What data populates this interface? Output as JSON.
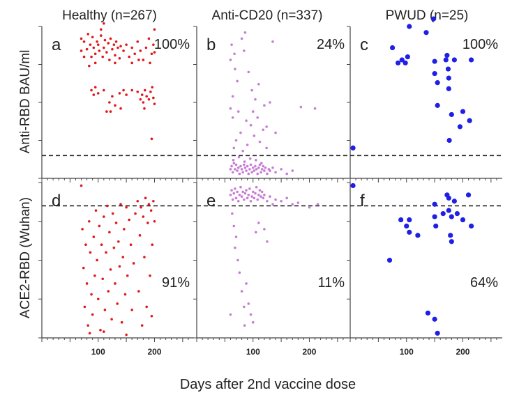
{
  "figure": {
    "xlabel": "Days after 2nd vaccine dose",
    "row_labels": [
      "Anti-RBD BAU/ml",
      "ACE2-RBD (Wuhan)"
    ],
    "columns": [
      "Healthy (n=267)",
      "Anti-CD20 (n=337)",
      "PWUD (n=25)"
    ],
    "tick_labels": [
      "100",
      "200"
    ]
  },
  "colors": {
    "healthy": "#e0191c",
    "anti_cd20": "#c77dd6",
    "pwud": "#1f1fe6",
    "axis": "#444444",
    "threshold": "#222222"
  },
  "chart_data": [
    {
      "type": "scatter",
      "panel": "a",
      "group": "Healthy (n=267)",
      "measure": "Anti-RBD BAU/ml",
      "percent_label": "100%",
      "xlim": [
        0,
        270
      ],
      "ylim": [
        0,
        100
      ],
      "threshold": 15,
      "points": [
        [
          70,
          92
        ],
        [
          75,
          90
        ],
        [
          80,
          85
        ],
        [
          82,
          95
        ],
        [
          86,
          88
        ],
        [
          88,
          80
        ],
        [
          90,
          93
        ],
        [
          92,
          86
        ],
        [
          95,
          82
        ],
        [
          98,
          90
        ],
        [
          100,
          88
        ],
        [
          102,
          84
        ],
        [
          105,
          94
        ],
        [
          108,
          80
        ],
        [
          110,
          86
        ],
        [
          112,
          91
        ],
        [
          115,
          83
        ],
        [
          118,
          89
        ],
        [
          120,
          78
        ],
        [
          122,
          92
        ],
        [
          125,
          85
        ],
        [
          128,
          88
        ],
        [
          130,
          81
        ],
        [
          132,
          90
        ],
        [
          135,
          86
        ],
        [
          138,
          79
        ],
        [
          140,
          87
        ],
        [
          145,
          84
        ],
        [
          150,
          88
        ],
        [
          155,
          80
        ],
        [
          160,
          86
        ],
        [
          165,
          82
        ],
        [
          170,
          90
        ],
        [
          175,
          84
        ],
        [
          180,
          78
        ],
        [
          185,
          86
        ],
        [
          190,
          92
        ],
        [
          195,
          82
        ],
        [
          198,
          88
        ],
        [
          110,
          102
        ],
        [
          75,
          80
        ],
        [
          95,
          76
        ],
        [
          130,
          76
        ],
        [
          172,
          78
        ],
        [
          192,
          76
        ],
        [
          88,
          58
        ],
        [
          92,
          55
        ],
        [
          95,
          60
        ],
        [
          100,
          56
        ],
        [
          110,
          58
        ],
        [
          120,
          50
        ],
        [
          125,
          54
        ],
        [
          130,
          48
        ],
        [
          138,
          56
        ],
        [
          145,
          58
        ],
        [
          150,
          55
        ],
        [
          160,
          58
        ],
        [
          170,
          57
        ],
        [
          175,
          52
        ],
        [
          178,
          55
        ],
        [
          180,
          50
        ],
        [
          183,
          58
        ],
        [
          186,
          54
        ],
        [
          190,
          52
        ],
        [
          193,
          57
        ],
        [
          196,
          60
        ],
        [
          198,
          53
        ],
        [
          200,
          49
        ],
        [
          115,
          44
        ],
        [
          140,
          46
        ],
        [
          182,
          46
        ],
        [
          122,
          44
        ],
        [
          195,
          26
        ],
        [
          200,
          98
        ],
        [
          70,
          84
        ],
        [
          84,
          74
        ],
        [
          105,
          98
        ],
        [
          160,
          76
        ],
        [
          200,
          83
        ]
      ]
    },
    {
      "type": "scatter",
      "panel": "b",
      "group": "Anti-CD20 (n=337)",
      "measure": "Anti-RBD BAU/ml",
      "percent_label": "24%",
      "xlim": [
        0,
        270
      ],
      "ylim": [
        0,
        100
      ],
      "threshold": 15,
      "points": [
        [
          60,
          6
        ],
        [
          62,
          8
        ],
        [
          64,
          4
        ],
        [
          66,
          10
        ],
        [
          68,
          6
        ],
        [
          70,
          9
        ],
        [
          72,
          5
        ],
        [
          74,
          7
        ],
        [
          76,
          3
        ],
        [
          78,
          8
        ],
        [
          80,
          6
        ],
        [
          82,
          4
        ],
        [
          84,
          9
        ],
        [
          86,
          7
        ],
        [
          88,
          5
        ],
        [
          90,
          8
        ],
        [
          92,
          3
        ],
        [
          94,
          6
        ],
        [
          96,
          9
        ],
        [
          98,
          4
        ],
        [
          100,
          7
        ],
        [
          102,
          5
        ],
        [
          104,
          8
        ],
        [
          106,
          6
        ],
        [
          108,
          3
        ],
        [
          110,
          7
        ],
        [
          112,
          9
        ],
        [
          114,
          4
        ],
        [
          116,
          6
        ],
        [
          118,
          8
        ],
        [
          120,
          5
        ],
        [
          122,
          7
        ],
        [
          125,
          3
        ],
        [
          128,
          6
        ],
        [
          130,
          5
        ],
        [
          135,
          7
        ],
        [
          140,
          4
        ],
        [
          150,
          6
        ],
        [
          160,
          3
        ],
        [
          170,
          5
        ],
        [
          65,
          12
        ],
        [
          75,
          14
        ],
        [
          85,
          11
        ],
        [
          95,
          13
        ],
        [
          105,
          12
        ],
        [
          115,
          10
        ],
        [
          66,
          20
        ],
        [
          70,
          25
        ],
        [
          78,
          30
        ],
        [
          82,
          18
        ],
        [
          90,
          22
        ],
        [
          96,
          35
        ],
        [
          102,
          28
        ],
        [
          108,
          40
        ],
        [
          112,
          24
        ],
        [
          118,
          32
        ],
        [
          124,
          20
        ],
        [
          130,
          50
        ],
        [
          60,
          78
        ],
        [
          62,
          88
        ],
        [
          68,
          72
        ],
        [
          72,
          64
        ],
        [
          80,
          92
        ],
        [
          86,
          96
        ],
        [
          92,
          70
        ],
        [
          98,
          58
        ],
        [
          104,
          52
        ],
        [
          110,
          62
        ],
        [
          120,
          48
        ],
        [
          135,
          90
        ],
        [
          60,
          46
        ],
        [
          64,
          40
        ],
        [
          74,
          44
        ],
        [
          88,
          38
        ],
        [
          140,
          30
        ],
        [
          185,
          47
        ],
        [
          210,
          46
        ],
        [
          67,
          82
        ],
        [
          84,
          84
        ],
        [
          100,
          44
        ],
        [
          124,
          34
        ],
        [
          64,
          54
        ]
      ]
    },
    {
      "type": "scatter",
      "panel": "c",
      "group": "PWUD (n=25)",
      "measure": "Anti-RBD BAU/ml",
      "percent_label": "100%",
      "xlim": [
        0,
        270
      ],
      "ylim": [
        0,
        100
      ],
      "threshold": 15,
      "points": [
        [
          5,
          20
        ],
        [
          75,
          86
        ],
        [
          85,
          76
        ],
        [
          92,
          78
        ],
        [
          98,
          76
        ],
        [
          102,
          80
        ],
        [
          105,
          100
        ],
        [
          135,
          96
        ],
        [
          148,
          105
        ],
        [
          150,
          77
        ],
        [
          150,
          69
        ],
        [
          155,
          63
        ],
        [
          155,
          48
        ],
        [
          170,
          78
        ],
        [
          172,
          81
        ],
        [
          174,
          72
        ],
        [
          175,
          66
        ],
        [
          175,
          59
        ],
        [
          176,
          25
        ],
        [
          180,
          42
        ],
        [
          185,
          78
        ],
        [
          195,
          34
        ],
        [
          200,
          44
        ],
        [
          212,
          38
        ],
        [
          215,
          78
        ]
      ]
    },
    {
      "type": "scatter",
      "panel": "d",
      "group": "Healthy (n=267)",
      "measure": "ACE2-RBD (Wuhan)",
      "percent_label": "91%",
      "xlim": [
        0,
        270
      ],
      "ylim": [
        0,
        100
      ],
      "threshold": 85,
      "points": [
        [
          70,
          98
        ],
        [
          72,
          70
        ],
        [
          74,
          45
        ],
        [
          76,
          20
        ],
        [
          78,
          60
        ],
        [
          80,
          35
        ],
        [
          82,
          8
        ],
        [
          84,
          75
        ],
        [
          86,
          55
        ],
        [
          88,
          28
        ],
        [
          90,
          15
        ],
        [
          92,
          65
        ],
        [
          94,
          40
        ],
        [
          96,
          82
        ],
        [
          98,
          50
        ],
        [
          100,
          25
        ],
        [
          102,
          72
        ],
        [
          104,
          5
        ],
        [
          106,
          60
        ],
        [
          108,
          38
        ],
        [
          110,
          78
        ],
        [
          112,
          18
        ],
        [
          114,
          55
        ],
        [
          116,
          85
        ],
        [
          118,
          30
        ],
        [
          120,
          68
        ],
        [
          122,
          44
        ],
        [
          124,
          12
        ],
        [
          126,
          80
        ],
        [
          128,
          58
        ],
        [
          130,
          35
        ],
        [
          132,
          74
        ],
        [
          134,
          22
        ],
        [
          136,
          62
        ],
        [
          138,
          46
        ],
        [
          140,
          86
        ],
        [
          142,
          10
        ],
        [
          144,
          52
        ],
        [
          146,
          70
        ],
        [
          148,
          28
        ],
        [
          150,
          84
        ],
        [
          152,
          40
        ],
        [
          155,
          76
        ],
        [
          158,
          60
        ],
        [
          160,
          18
        ],
        [
          163,
          48
        ],
        [
          166,
          80
        ],
        [
          170,
          88
        ],
        [
          172,
          30
        ],
        [
          174,
          66
        ],
        [
          176,
          84
        ],
        [
          178,
          8
        ],
        [
          180,
          78
        ],
        [
          182,
          52
        ],
        [
          184,
          90
        ],
        [
          186,
          20
        ],
        [
          188,
          74
        ],
        [
          190,
          86
        ],
        [
          192,
          40
        ],
        [
          194,
          82
        ],
        [
          196,
          60
        ],
        [
          198,
          88
        ],
        [
          200,
          75
        ],
        [
          85,
          3
        ],
        [
          110,
          4
        ],
        [
          150,
          2
        ],
        [
          195,
          14
        ]
      ]
    },
    {
      "type": "scatter",
      "panel": "e",
      "group": "Anti-CD20 (n=337)",
      "measure": "ACE2-RBD (Wuhan)",
      "percent_label": "11%",
      "xlim": [
        0,
        270
      ],
      "ylim": [
        0,
        100
      ],
      "threshold": 85,
      "points": [
        [
          60,
          92
        ],
        [
          62,
          95
        ],
        [
          64,
          89
        ],
        [
          66,
          93
        ],
        [
          68,
          96
        ],
        [
          70,
          90
        ],
        [
          72,
          94
        ],
        [
          74,
          88
        ],
        [
          76,
          92
        ],
        [
          78,
          97
        ],
        [
          80,
          91
        ],
        [
          82,
          94
        ],
        [
          84,
          89
        ],
        [
          86,
          93
        ],
        [
          88,
          95
        ],
        [
          90,
          90
        ],
        [
          92,
          92
        ],
        [
          94,
          96
        ],
        [
          96,
          88
        ],
        [
          98,
          91
        ],
        [
          100,
          94
        ],
        [
          102,
          90
        ],
        [
          104,
          93
        ],
        [
          106,
          97
        ],
        [
          108,
          89
        ],
        [
          110,
          92
        ],
        [
          112,
          95
        ],
        [
          114,
          91
        ],
        [
          116,
          94
        ],
        [
          118,
          90
        ],
        [
          120,
          92
        ],
        [
          125,
          88
        ],
        [
          130,
          91
        ],
        [
          135,
          86
        ],
        [
          140,
          89
        ],
        [
          150,
          88
        ],
        [
          160,
          90
        ],
        [
          170,
          86
        ],
        [
          180,
          87
        ],
        [
          200,
          84
        ],
        [
          215,
          86
        ],
        [
          63,
          80
        ],
        [
          66,
          72
        ],
        [
          68,
          58
        ],
        [
          70,
          65
        ],
        [
          73,
          50
        ],
        [
          76,
          42
        ],
        [
          80,
          30
        ],
        [
          84,
          20
        ],
        [
          88,
          35
        ],
        [
          92,
          22
        ],
        [
          96,
          15
        ],
        [
          100,
          10
        ],
        [
          85,
          8
        ],
        [
          105,
          68
        ],
        [
          110,
          74
        ],
        [
          120,
          70
        ],
        [
          125,
          62
        ],
        [
          60,
          15
        ]
      ]
    },
    {
      "type": "scatter",
      "panel": "f",
      "group": "PWUD (n=25)",
      "measure": "ACE2-RBD (Wuhan)",
      "percent_label": "64%",
      "xlim": [
        0,
        270
      ],
      "ylim": [
        0,
        100
      ],
      "threshold": 85,
      "points": [
        [
          5,
          98
        ],
        [
          70,
          50
        ],
        [
          90,
          76
        ],
        [
          100,
          72
        ],
        [
          105,
          76
        ],
        [
          105,
          68
        ],
        [
          120,
          66
        ],
        [
          138,
          16
        ],
        [
          150,
          12
        ],
        [
          155,
          3
        ],
        [
          150,
          78
        ],
        [
          150,
          86
        ],
        [
          152,
          72
        ],
        [
          165,
          80
        ],
        [
          172,
          92
        ],
        [
          175,
          90
        ],
        [
          175,
          82
        ],
        [
          178,
          66
        ],
        [
          180,
          62
        ],
        [
          180,
          78
        ],
        [
          185,
          88
        ],
        [
          190,
          80
        ],
        [
          200,
          76
        ],
        [
          210,
          92
        ],
        [
          215,
          72
        ]
      ]
    }
  ]
}
